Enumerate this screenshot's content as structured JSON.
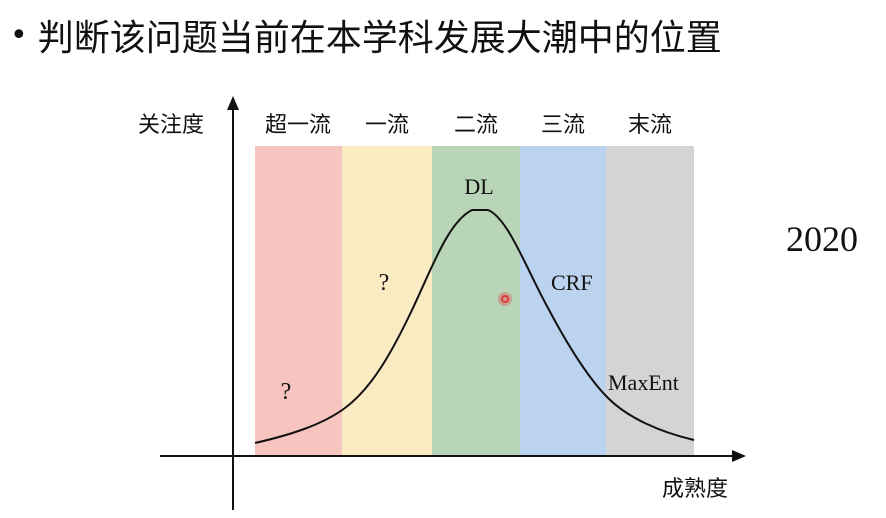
{
  "slide": {
    "headline_bullet": "•",
    "headline": "判断该问题当前在本学科发展大潮中的位置",
    "year": "2020"
  },
  "diagram": {
    "y_axis_label": "关注度",
    "x_axis_label": "成熟度",
    "bands": [
      {
        "label": "超一流",
        "color": "#f7c4bf"
      },
      {
        "label": "一流",
        "color": "#fbebc3"
      },
      {
        "label": "二流",
        "color": "#b8d5b8"
      },
      {
        "label": "三流",
        "color": "#bcd3ef"
      },
      {
        "label": "末流",
        "color": "#d4d4d6"
      }
    ],
    "curve_labels": {
      "dl": "DL",
      "crf": "CRF",
      "maxent": "MaxEnt",
      "question_1": "?",
      "question_2": "?"
    },
    "pointer_color": "#e23b3b"
  }
}
